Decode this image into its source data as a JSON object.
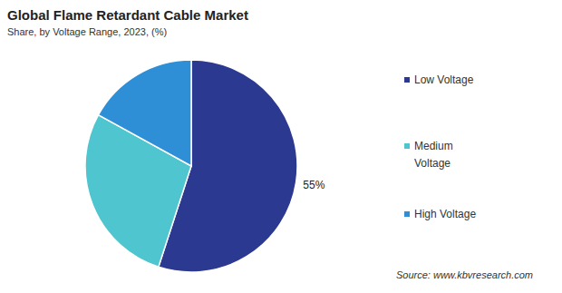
{
  "chart_data": {
    "type": "pie",
    "title": "Global Flame Retardant Cable Market",
    "subtitle": "Share, by Voltage Range, 2023, (%)",
    "categories": [
      "Low Voltage",
      "Medium Voltage",
      "High Voltage"
    ],
    "values": [
      55,
      28,
      17
    ],
    "value_labels": [
      "55%",
      null,
      null
    ],
    "colors": [
      "#2b3990",
      "#4ec5cf",
      "#2e8fd6"
    ],
    "legend": "right",
    "source": "Source: www.kbvresearch.com"
  }
}
